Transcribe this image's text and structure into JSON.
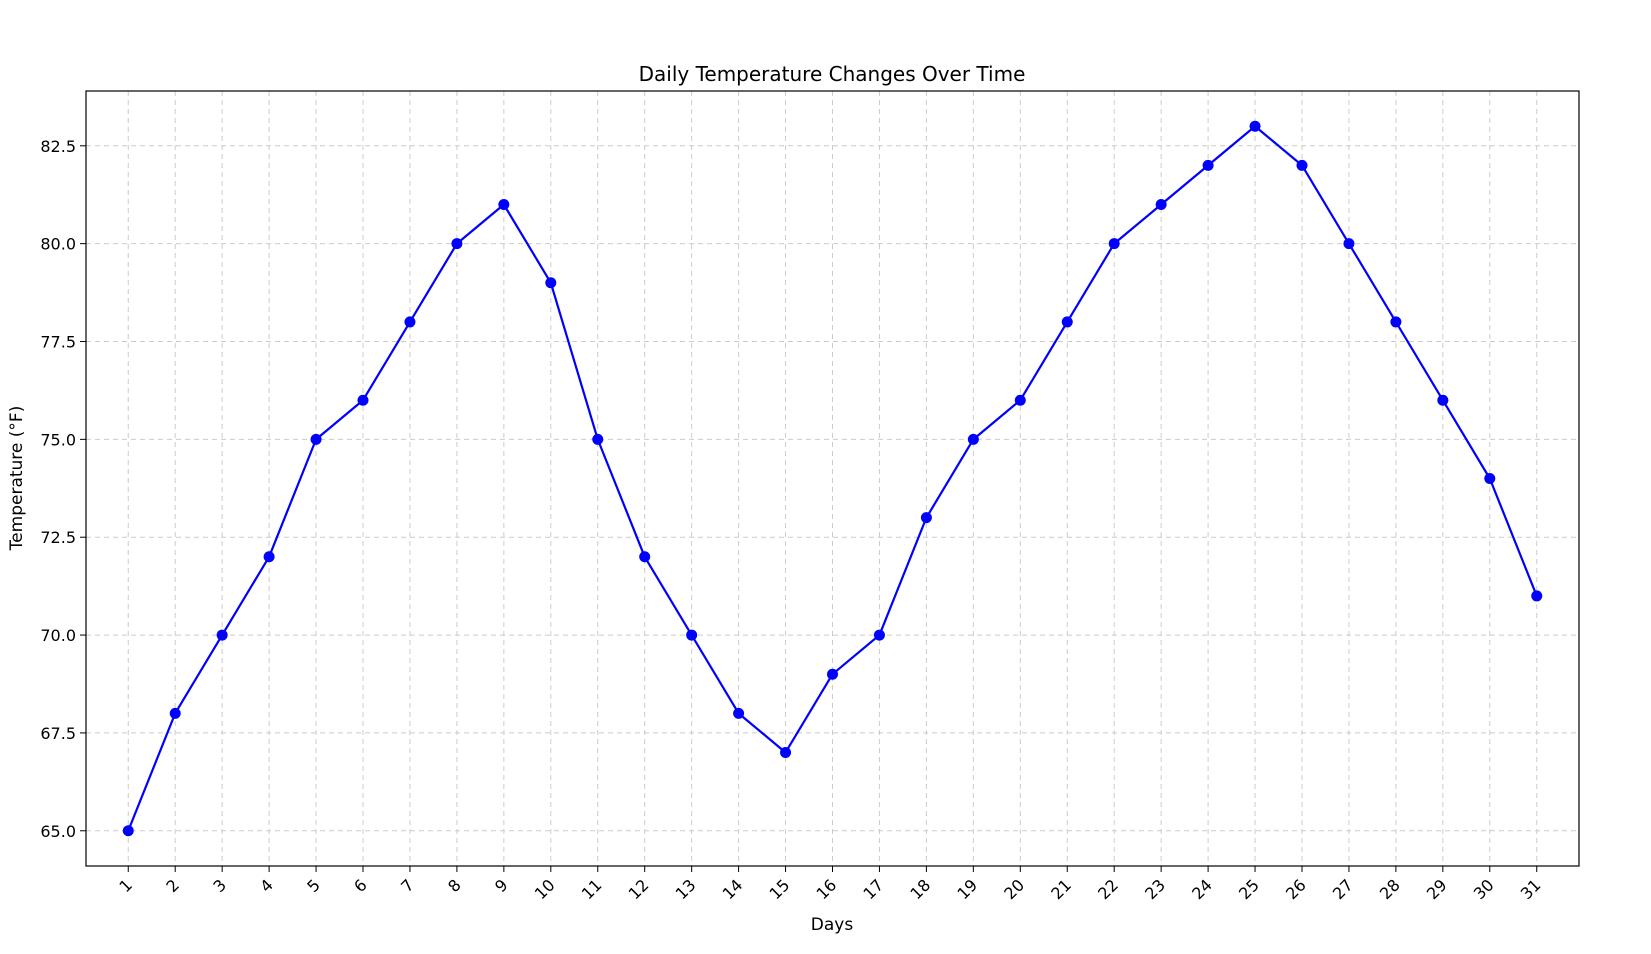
{
  "chart_data": {
    "type": "line",
    "title": "Daily Temperature Changes Over Time",
    "xlabel": "Days",
    "ylabel": "Temperature (°F)",
    "x": [
      1,
      2,
      3,
      4,
      5,
      6,
      7,
      8,
      9,
      10,
      11,
      12,
      13,
      14,
      15,
      16,
      17,
      18,
      19,
      20,
      21,
      22,
      23,
      24,
      25,
      26,
      27,
      28,
      29,
      30,
      31
    ],
    "series": [
      {
        "color": "#0000ff",
        "marker": "circle",
        "values": [
          65,
          68,
          70,
          72,
          75,
          76,
          78,
          80,
          81,
          79,
          75,
          72,
          70,
          68,
          67,
          69,
          70,
          73,
          75,
          76,
          78,
          80,
          81,
          82,
          83,
          82,
          80,
          78,
          76,
          74,
          71
        ]
      }
    ],
    "xlim": [
      0.1,
      31.9
    ],
    "ylim": [
      64.1,
      83.9
    ],
    "xticks": [
      1,
      2,
      3,
      4,
      5,
      6,
      7,
      8,
      9,
      10,
      11,
      12,
      13,
      14,
      15,
      16,
      17,
      18,
      19,
      20,
      21,
      22,
      23,
      24,
      25,
      26,
      27,
      28,
      29,
      30,
      31
    ],
    "yticks": [
      "65.0",
      "67.5",
      "70.0",
      "72.5",
      "75.0",
      "77.5",
      "80.0",
      "82.5"
    ],
    "xtick_rotation": 45,
    "grid": true,
    "grid_style": "dashed",
    "grid_color": "#cccccc",
    "legend": "none"
  }
}
